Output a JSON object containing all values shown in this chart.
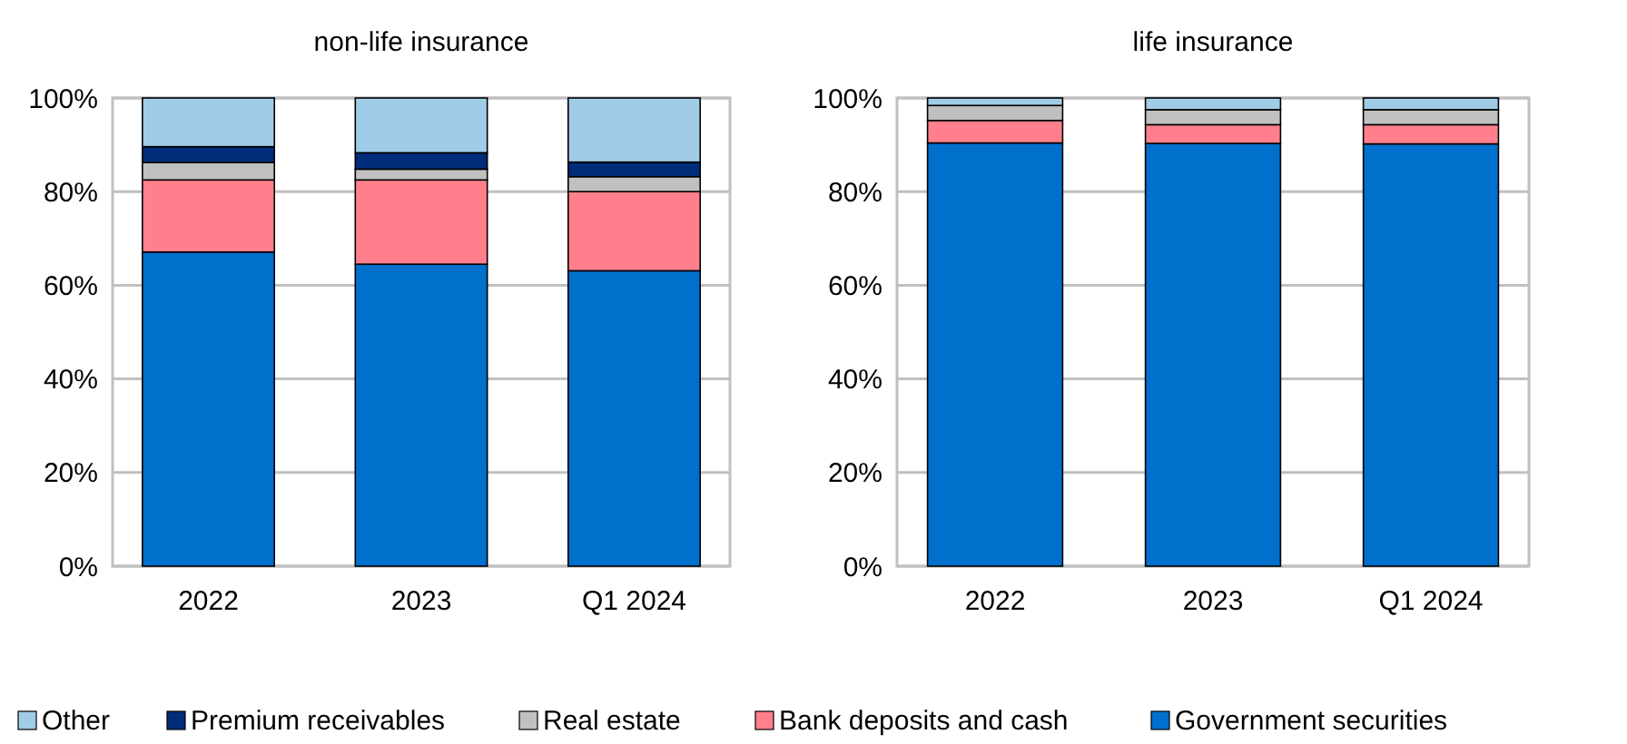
{
  "chart_data": [
    {
      "type": "bar",
      "title": "non-life insurance",
      "stacked": true,
      "categories": [
        "2022",
        "2023",
        "Q1 2024"
      ],
      "ylim": [
        0,
        100
      ],
      "yticks": [
        {
          "value": 0,
          "label": "0%"
        },
        {
          "value": 20,
          "label": "20%"
        },
        {
          "value": 40,
          "label": "40%"
        },
        {
          "value": 60,
          "label": "60%"
        },
        {
          "value": 80,
          "label": "80%"
        },
        {
          "value": 100,
          "label": "100%"
        }
      ],
      "grid": "y",
      "legend": "bottom",
      "series": [
        {
          "name": "Government securities",
          "color": "#0070cc",
          "values": [
            67.1,
            64.5,
            63.1
          ]
        },
        {
          "name": "Bank deposits and cash",
          "color": "#ff808c",
          "values": [
            15.4,
            18.0,
            16.9
          ]
        },
        {
          "name": "Real estate",
          "color": "#c0c0c0",
          "values": [
            3.7,
            2.3,
            3.2
          ]
        },
        {
          "name": "Premium receivables",
          "color": "#002d7a",
          "values": [
            3.4,
            3.5,
            3.1
          ]
        },
        {
          "name": "Other",
          "color": "#a0cce8",
          "values": [
            10.4,
            11.7,
            13.7
          ]
        }
      ]
    },
    {
      "type": "bar",
      "title": "life insurance",
      "stacked": true,
      "categories": [
        "2022",
        "2023",
        "Q1 2024"
      ],
      "ylim": [
        0,
        100
      ],
      "yticks": [
        {
          "value": 0,
          "label": "0%"
        },
        {
          "value": 20,
          "label": "20%"
        },
        {
          "value": 40,
          "label": "40%"
        },
        {
          "value": 60,
          "label": "60%"
        },
        {
          "value": 80,
          "label": "80%"
        },
        {
          "value": 100,
          "label": "100%"
        }
      ],
      "grid": "y",
      "legend": false,
      "series": [
        {
          "color": "#0070cc",
          "values": [
            90.4,
            90.3,
            90.2
          ]
        },
        {
          "color": "#ff808c",
          "values": [
            4.8,
            4.0,
            4.1
          ]
        },
        {
          "color": "#c0c0c0",
          "values": [
            3.2,
            3.2,
            3.2
          ]
        },
        {
          "color": "#a0cce8",
          "values": [
            1.6,
            2.5,
            2.5
          ]
        }
      ]
    }
  ]
}
